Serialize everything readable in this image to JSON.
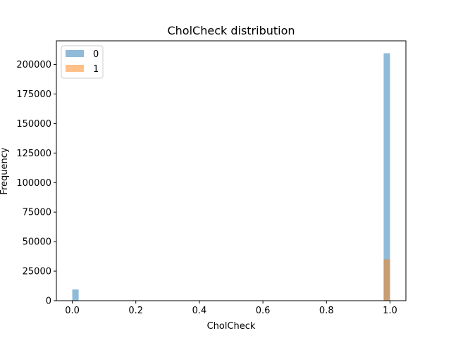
{
  "chart_data": {
    "type": "bar",
    "title": "CholCheck distribution",
    "xlabel": "CholCheck",
    "ylabel": "Frequency",
    "xlim": [
      -0.05,
      1.05
    ],
    "ylim": [
      0,
      220000
    ],
    "x_ticks": [
      0.0,
      0.2,
      0.4,
      0.6,
      0.8,
      1.0
    ],
    "x_tick_labels": [
      "0.0",
      "0.2",
      "0.4",
      "0.6",
      "0.8",
      "1.0"
    ],
    "y_ticks": [
      0,
      25000,
      50000,
      75000,
      100000,
      125000,
      150000,
      175000,
      200000
    ],
    "y_tick_labels": [
      "0",
      "25000",
      "50000",
      "75000",
      "100000",
      "125000",
      "150000",
      "175000",
      "200000"
    ],
    "legend_position": "top-left",
    "series": [
      {
        "name": "0",
        "color": "#1f77b4",
        "opacity": 0.5,
        "bins": [
          {
            "x0": 0.0,
            "x1": 0.02,
            "value": 9500
          },
          {
            "x0": 0.98,
            "x1": 1.0,
            "value": 209500
          }
        ]
      },
      {
        "name": "1",
        "color": "#ff7f0e",
        "opacity": 0.5,
        "bins": [
          {
            "x0": 0.0,
            "x1": 0.02,
            "value": 250
          },
          {
            "x0": 0.98,
            "x1": 1.0,
            "value": 35000
          }
        ]
      }
    ]
  }
}
